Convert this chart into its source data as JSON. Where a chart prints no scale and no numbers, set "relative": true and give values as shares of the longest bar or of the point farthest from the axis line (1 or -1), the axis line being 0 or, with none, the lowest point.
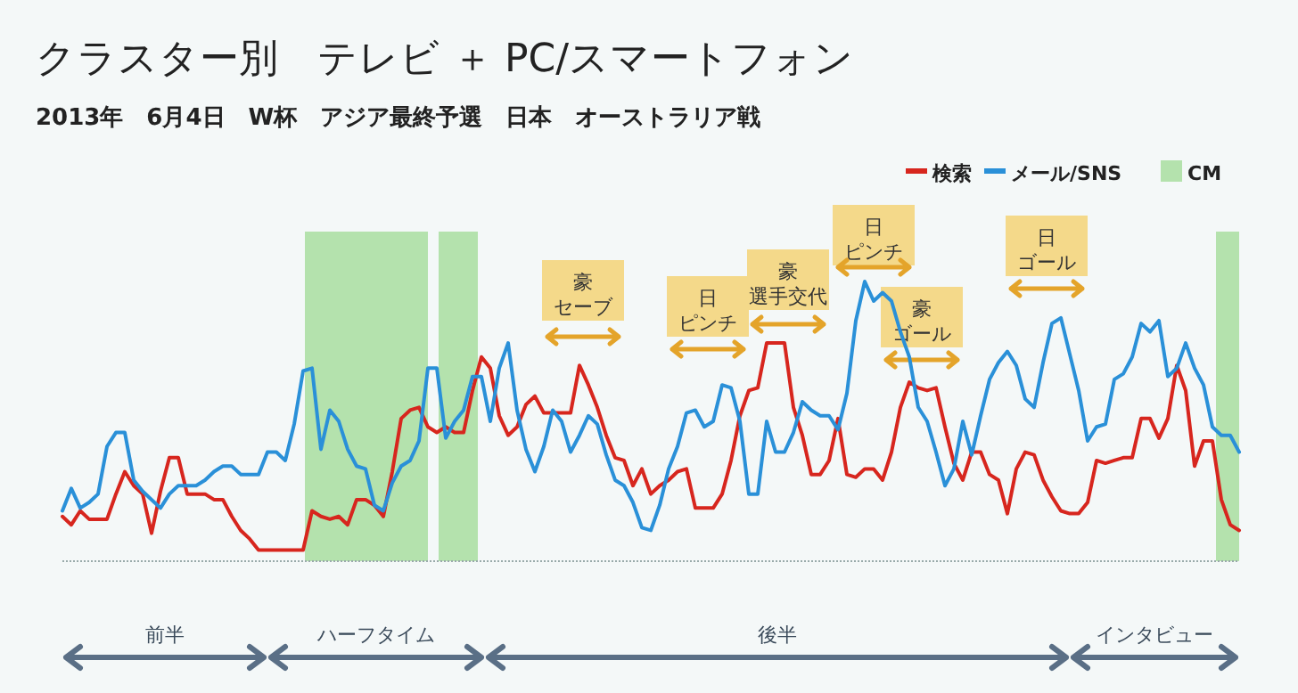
{
  "chart_data": {
    "type": "line",
    "title": "クラスター別　テレビ ＋ PC/スマートフォン",
    "subtitle": "2013年　6月4日　W杯　アジア最終予選　日本　オーストラリア戦",
    "relative": true,
    "legend": "top right",
    "marker": "none",
    "line_style": "solid",
    "categories": [
      null,
      null,
      null,
      null,
      null,
      null,
      null,
      null,
      null,
      null,
      null,
      null,
      null,
      null,
      null,
      null,
      null,
      null,
      null,
      null,
      null,
      null,
      null,
      null,
      null,
      null,
      null,
      null,
      null,
      null,
      null,
      null,
      null,
      null,
      null,
      null,
      null,
      null,
      null,
      null,
      null,
      null,
      null,
      null,
      null,
      null,
      null,
      null,
      null,
      null,
      null,
      null,
      null,
      null,
      null,
      null,
      null,
      null,
      null,
      null,
      null,
      null,
      null,
      null,
      null,
      null,
      null,
      null,
      null,
      null,
      null,
      null,
      null,
      null,
      null,
      null,
      null,
      null,
      null,
      null,
      null,
      null,
      null,
      null,
      null,
      null,
      null,
      null,
      null,
      null,
      null,
      null,
      null,
      null,
      null,
      null,
      null,
      null,
      null,
      null,
      null,
      null,
      null,
      null,
      null,
      null,
      null,
      null,
      null,
      null,
      null,
      null,
      null,
      null,
      null,
      null,
      null,
      null,
      null,
      null,
      null,
      null,
      null,
      null,
      null,
      null,
      null,
      null,
      null,
      null,
      null,
      null,
      null
    ],
    "series": [
      {
        "name": "検索",
        "color": "#d7261e",
        "values": [
          0.16,
          0.13,
          0.18,
          0.15,
          0.15,
          0.15,
          0.24,
          0.32,
          0.27,
          0.24,
          0.1,
          0.25,
          0.37,
          0.37,
          0.24,
          0.24,
          0.24,
          0.22,
          0.22,
          0.16,
          0.11,
          0.08,
          0.04,
          0.04,
          0.04,
          0.04,
          0.04,
          0.04,
          0.18,
          0.16,
          0.15,
          0.16,
          0.13,
          0.22,
          0.22,
          0.2,
          0.16,
          0.32,
          0.51,
          0.54,
          0.55,
          0.48,
          0.46,
          0.48,
          0.46,
          0.46,
          0.61,
          0.73,
          0.69,
          0.52,
          0.45,
          0.48,
          0.56,
          0.59,
          0.53,
          0.53,
          0.53,
          0.53,
          0.7,
          0.63,
          0.55,
          0.45,
          0.37,
          0.36,
          0.27,
          0.33,
          0.24,
          0.27,
          0.29,
          0.32,
          0.33,
          0.19,
          0.19,
          0.19,
          0.24,
          0.36,
          0.52,
          0.61,
          0.62,
          0.78,
          0.78,
          0.78,
          0.55,
          0.45,
          0.31,
          0.31,
          0.36,
          0.51,
          0.31,
          0.3,
          0.33,
          0.33,
          0.29,
          0.39,
          0.55,
          0.64,
          0.62,
          0.61,
          0.62,
          0.48,
          0.35,
          0.29,
          0.39,
          0.39,
          0.31,
          0.29,
          0.17,
          0.33,
          0.39,
          0.38,
          0.29,
          0.23,
          0.18,
          0.17,
          0.17,
          0.21,
          0.36,
          0.35,
          0.36,
          0.37,
          0.37,
          0.51,
          0.51,
          0.44,
          0.51,
          0.7,
          0.61,
          0.34,
          0.43,
          0.43,
          0.22,
          0.13,
          0.11
        ]
      },
      {
        "name": "メール/SNS",
        "color": "#2a90d8",
        "values": [
          0.18,
          0.26,
          0.19,
          0.21,
          0.24,
          0.41,
          0.46,
          0.46,
          0.29,
          0.25,
          0.22,
          0.19,
          0.24,
          0.27,
          0.27,
          0.27,
          0.29,
          0.32,
          0.34,
          0.34,
          0.31,
          0.31,
          0.31,
          0.39,
          0.39,
          0.36,
          0.49,
          0.68,
          0.69,
          0.4,
          0.54,
          0.5,
          0.4,
          0.34,
          0.33,
          0.2,
          0.18,
          0.28,
          0.34,
          0.36,
          0.43,
          0.69,
          0.69,
          0.44,
          0.5,
          0.54,
          0.66,
          0.66,
          0.5,
          0.69,
          0.78,
          0.54,
          0.4,
          0.32,
          0.41,
          0.54,
          0.5,
          0.39,
          0.45,
          0.52,
          0.49,
          0.38,
          0.29,
          0.27,
          0.21,
          0.12,
          0.11,
          0.2,
          0.33,
          0.41,
          0.53,
          0.54,
          0.48,
          0.5,
          0.63,
          0.62,
          0.5,
          0.24,
          0.24,
          0.5,
          0.39,
          0.39,
          0.46,
          0.57,
          0.54,
          0.52,
          0.52,
          0.47,
          0.6,
          0.86,
          1.0,
          0.93,
          0.96,
          0.93,
          0.82,
          0.73,
          0.55,
          0.5,
          0.39,
          0.27,
          0.33,
          0.5,
          0.38,
          0.52,
          0.65,
          0.71,
          0.75,
          0.7,
          0.58,
          0.55,
          0.71,
          0.85,
          0.87,
          0.74,
          0.61,
          0.43,
          0.48,
          0.49,
          0.65,
          0.67,
          0.73,
          0.85,
          0.82,
          0.86,
          0.66,
          0.69,
          0.78,
          0.69,
          0.63,
          0.48,
          0.45,
          0.45,
          0.39
        ]
      }
    ],
    "annotations": [
      "豪セーブ",
      "日ピンチ",
      "豪選手交代",
      "日ピンチ",
      "豪ゴール",
      "日ゴール",
      "前半",
      "ハーフタイム",
      "後半",
      "インタビュー",
      "CM"
    ]
  }
}
